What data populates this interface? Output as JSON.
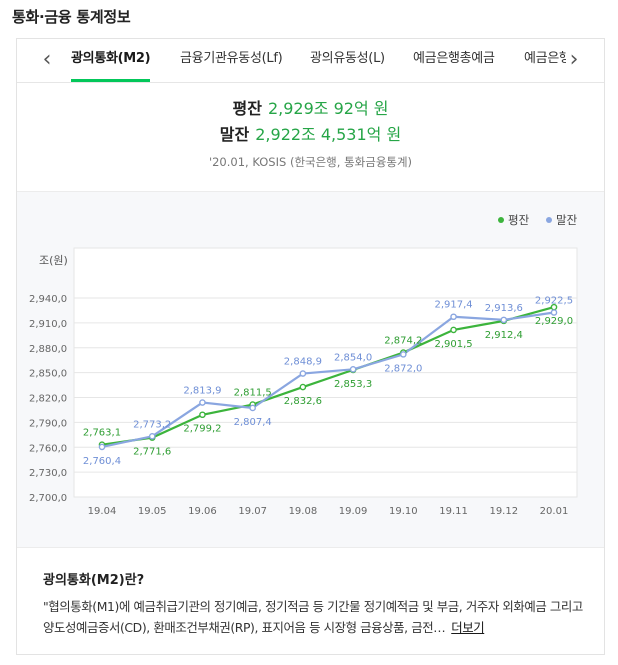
{
  "page": {
    "title": "통화·금융 통계정보"
  },
  "tabs": {
    "prev_icon": "chevron-left-icon",
    "next_icon": "chevron-right-icon",
    "items": [
      {
        "label": "광의통화(M2)",
        "active": true
      },
      {
        "label": "금융기관유동성(Lf)",
        "active": false
      },
      {
        "label": "광의유동성(L)",
        "active": false
      },
      {
        "label": "예금은행총예금",
        "active": false
      },
      {
        "label": "예금은행",
        "active": false
      }
    ]
  },
  "summary": {
    "avg_label": "평잔",
    "avg_value": "2,929조 92억 원",
    "end_label": "말잔",
    "end_value": "2,922조 4,531억 원",
    "source": "'20.01, KOSIS (한국은행, 통화금융통계)"
  },
  "colors": {
    "avg": "#3cb43c",
    "end": "#8aa6e0",
    "accent": "#03c75a"
  },
  "chart_data": {
    "type": "line",
    "ylabel": "조(원)",
    "ylim": [
      2700,
      2940
    ],
    "yticks": [
      "2,940,0",
      "2,910,0",
      "2,880,0",
      "2,850,0",
      "2,820,0",
      "2,790,0",
      "2,760,0",
      "2,730,0",
      "2,700,0"
    ],
    "categories": [
      "19.04",
      "19.05",
      "19.06",
      "19.07",
      "19.08",
      "19.09",
      "19.10",
      "19.11",
      "19.12",
      "20.01"
    ],
    "legend": {
      "placement": "top-right"
    },
    "series": [
      {
        "name": "평잔",
        "values": [
          2763.1,
          2771.6,
          2799.2,
          2811.5,
          2832.6,
          2853.3,
          2874.2,
          2901.5,
          2912.4,
          2929.0
        ],
        "labels": [
          "2,763,1",
          "2,771,6",
          "2,799,2",
          "2,811,5",
          "2,832,6",
          "2,853,3",
          "2,874,2",
          "2,901,5",
          "2,912,4",
          "2,929,0"
        ]
      },
      {
        "name": "말잔",
        "values": [
          2760.4,
          2773.2,
          2813.9,
          2807.4,
          2848.9,
          2854.0,
          2872.0,
          2917.4,
          2913.6,
          2922.5
        ],
        "labels": [
          "2,760,4",
          "2,773,2",
          "2,813,9",
          "2,807,4",
          "2,848,9",
          "2,854,0",
          "2,872,0",
          "2,917,4",
          "2,913,6",
          "2,922,5"
        ]
      }
    ]
  },
  "info": {
    "title": "광의통화(M2)란?",
    "text": "\"협의통화(M1)에 예금취급기관의 정기예금, 정기적금 등 기간물 정기예적금 및 부금, 거주자 외화예금 그리고 양도성예금증서(CD), 환매조건부채권(RP), 표지어음 등 시장형 금융상품, 금전…",
    "more_label": "더보기"
  }
}
